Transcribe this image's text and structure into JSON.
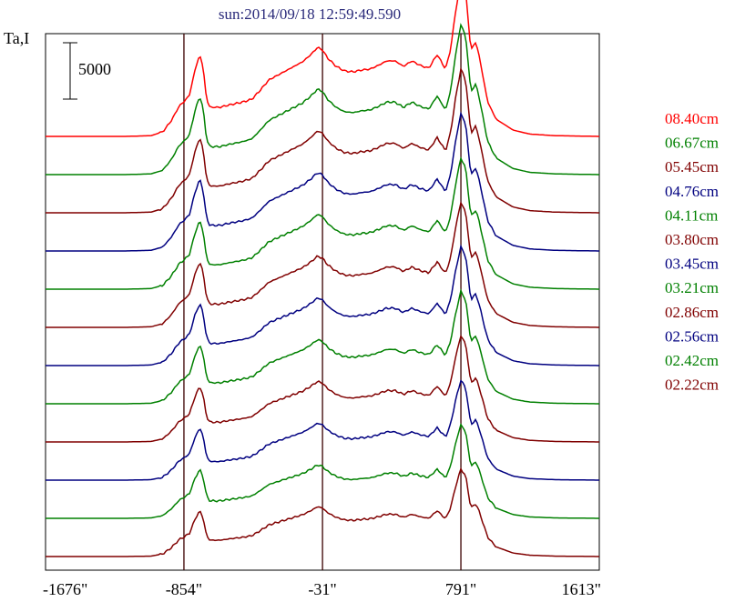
{
  "chart_data": {
    "type": "line",
    "title": "sun:2014/09/18 12:59:49.590",
    "ylabel": "Ta,I",
    "scale_bar_label": "5000",
    "scale_bar_value": 5000,
    "xlim": [
      -1676,
      1613
    ],
    "x_ticks": [
      {
        "value": -1676,
        "label": "-1676\""
      },
      {
        "value": -854,
        "label": "-854\""
      },
      {
        "value": -31,
        "label": "-31\""
      },
      {
        "value": 791,
        "label": "791\""
      },
      {
        "value": 1613,
        "label": "1613\""
      }
    ],
    "vertical_lines": [
      -854,
      -31,
      791
    ],
    "grid": false,
    "legend_placement": "right",
    "profile_x": [
      -1676,
      -1400,
      -1200,
      -1050,
      -980,
      -930,
      -880,
      -854,
      -820,
      -790,
      -760,
      -740,
      -720,
      -700,
      -670,
      -640,
      -600,
      -550,
      -500,
      -450,
      -400,
      -350,
      -300,
      -250,
      -200,
      -150,
      -100,
      -60,
      -31,
      0,
      50,
      100,
      150,
      200,
      250,
      300,
      350,
      400,
      450,
      500,
      550,
      600,
      650,
      700,
      730,
      760,
      791,
      820,
      850,
      880,
      900,
      950,
      1000,
      1100,
      1200,
      1350,
      1613
    ],
    "profile_y": [
      0,
      0,
      0,
      80,
      500,
      1700,
      3400,
      3800,
      4600,
      7200,
      9000,
      7600,
      4100,
      3200,
      3200,
      3200,
      3400,
      3600,
      3800,
      4100,
      5100,
      6200,
      6700,
      7200,
      7700,
      8200,
      9000,
      9800,
      9500,
      8600,
      7700,
      7200,
      7100,
      7300,
      7400,
      7800,
      8300,
      8300,
      7700,
      8300,
      7800,
      7500,
      9000,
      7400,
      9600,
      13800,
      17200,
      15800,
      9500,
      10400,
      8800,
      3800,
      1900,
      700,
      260,
      80,
      0
    ],
    "offset_step": 4200,
    "series": [
      {
        "name": "08.40cm",
        "color": "#ff0000",
        "amplitude": 1.0
      },
      {
        "name": "06.67cm",
        "color": "#008000",
        "amplitude": 0.96
      },
      {
        "name": "05.45cm",
        "color": "#800000",
        "amplitude": 0.92
      },
      {
        "name": "04.76cm",
        "color": "#000080",
        "amplitude": 0.88
      },
      {
        "name": "04.11cm",
        "color": "#008000",
        "amplitude": 0.84
      },
      {
        "name": "03.80cm",
        "color": "#800000",
        "amplitude": 0.8
      },
      {
        "name": "03.45cm",
        "color": "#000080",
        "amplitude": 0.76
      },
      {
        "name": "03.21cm",
        "color": "#008000",
        "amplitude": 0.72
      },
      {
        "name": "02.86cm",
        "color": "#800000",
        "amplitude": 0.68
      },
      {
        "name": "02.56cm",
        "color": "#000080",
        "amplitude": 0.64
      },
      {
        "name": "02.42cm",
        "color": "#008000",
        "amplitude": 0.6
      },
      {
        "name": "02.22cm",
        "color": "#800000",
        "amplitude": 0.56
      }
    ]
  }
}
